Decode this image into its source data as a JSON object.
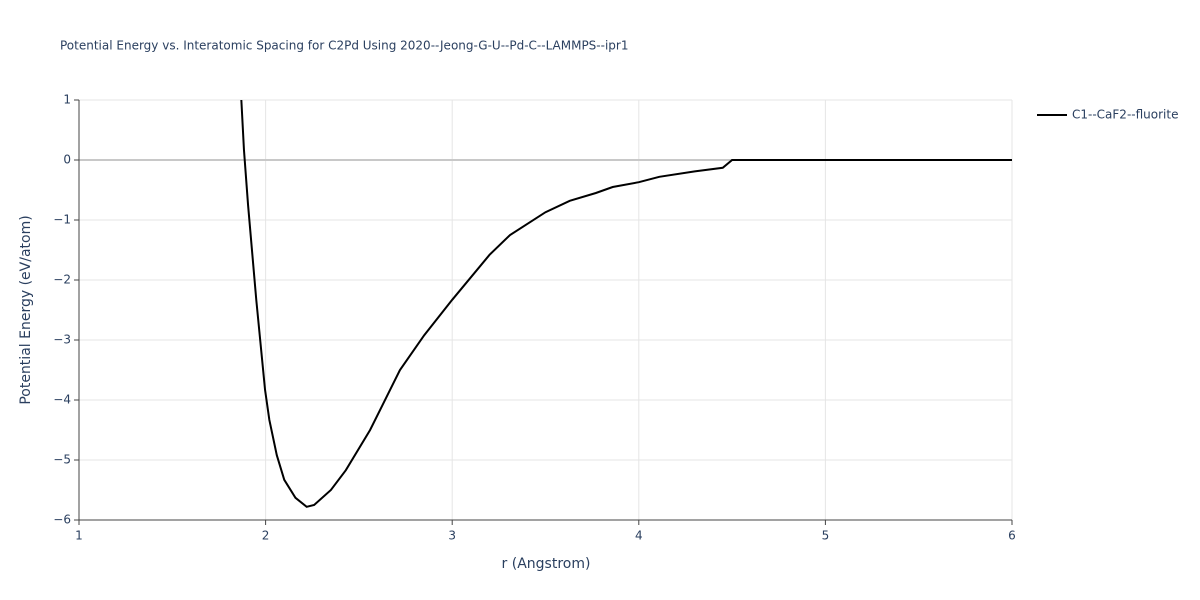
{
  "chart_data": {
    "type": "line",
    "title": "Potential Energy vs. Interatomic Spacing for C2Pd Using 2020--Jeong-G-U--Pd-C--LAMMPS--ipr1",
    "x_label": "r (Angstrom)",
    "y_label": "Potential Energy (eV/atom)",
    "x": [
      1.87,
      1.884,
      1.906,
      1.95,
      1.997,
      2.02,
      2.06,
      2.1,
      2.16,
      2.22,
      2.26,
      2.35,
      2.43,
      2.56,
      2.72,
      2.85,
      3.0,
      3.2,
      3.31,
      3.5,
      3.63,
      3.77,
      3.86,
      4.0,
      4.11,
      4.3,
      4.45,
      4.5,
      6.0
    ],
    "series": [
      {
        "name": "C1--CaF2--fluorite",
        "color": "#000000",
        "values": [
          1.0,
          0.17,
          -0.75,
          -2.33,
          -3.83,
          -4.33,
          -4.92,
          -5.33,
          -5.63,
          -5.78,
          -5.75,
          -5.5,
          -5.17,
          -4.5,
          -3.5,
          -2.92,
          -2.33,
          -1.58,
          -1.25,
          -0.87,
          -0.68,
          -0.55,
          -0.45,
          -0.37,
          -0.28,
          -0.19,
          -0.13,
          0,
          0
        ]
      }
    ],
    "xlim": [
      1,
      6
    ],
    "xticks": [
      1,
      2,
      3,
      4,
      5,
      6
    ],
    "ylim": [
      -6,
      1
    ],
    "yticks": [
      {
        "value": -6,
        "label": "−6"
      },
      {
        "value": -5,
        "label": "−5"
      },
      {
        "value": -4,
        "label": "−4"
      },
      {
        "value": -3,
        "label": "−3"
      },
      {
        "value": -2,
        "label": "−2"
      },
      {
        "value": -1,
        "label": "−1"
      },
      0,
      1
    ],
    "grid": true,
    "legend": "right"
  }
}
